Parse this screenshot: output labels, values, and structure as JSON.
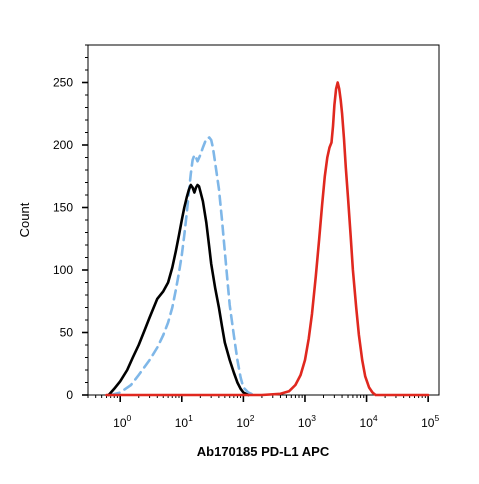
{
  "chart_data": {
    "type": "line",
    "title": "",
    "xlabel": "Ab170185 PD-L1 APC",
    "ylabel": "Count",
    "x_scale": "log",
    "xlim": [
      0.3,
      150000
    ],
    "ylim": [
      0,
      280
    ],
    "grid": false,
    "legend": "none",
    "x_ticks": [
      {
        "base": "10",
        "exp": "0",
        "value": 1
      },
      {
        "base": "10",
        "exp": "1",
        "value": 10
      },
      {
        "base": "10",
        "exp": "2",
        "value": 100
      },
      {
        "base": "10",
        "exp": "3",
        "value": 1000
      },
      {
        "base": "10",
        "exp": "4",
        "value": 10000
      },
      {
        "base": "10",
        "exp": "5",
        "value": 100000
      }
    ],
    "y_ticks": [
      0,
      50,
      100,
      150,
      200,
      250
    ],
    "series": [
      {
        "color": "#7fb7e8",
        "style": "dashed",
        "points": [
          [
            0.7,
            0
          ],
          [
            1,
            2
          ],
          [
            1.5,
            8
          ],
          [
            2,
            16
          ],
          [
            3,
            28
          ],
          [
            4,
            38
          ],
          [
            5,
            48
          ],
          [
            6,
            58
          ],
          [
            7,
            70
          ],
          [
            8,
            84
          ],
          [
            9,
            98
          ],
          [
            10,
            112
          ],
          [
            11,
            128
          ],
          [
            12,
            145
          ],
          [
            13,
            162
          ],
          [
            14,
            177
          ],
          [
            15,
            188
          ],
          [
            16,
            192
          ],
          [
            17,
            190
          ],
          [
            18,
            187
          ],
          [
            20,
            192
          ],
          [
            22,
            198
          ],
          [
            25,
            205
          ],
          [
            28,
            206
          ],
          [
            30,
            204
          ],
          [
            32,
            198
          ],
          [
            35,
            185
          ],
          [
            40,
            165
          ],
          [
            45,
            140
          ],
          [
            50,
            115
          ],
          [
            55,
            92
          ],
          [
            60,
            72
          ],
          [
            70,
            48
          ],
          [
            80,
            28
          ],
          [
            90,
            14
          ],
          [
            100,
            6
          ],
          [
            120,
            2
          ],
          [
            150,
            0
          ]
        ]
      },
      {
        "color": "#000000",
        "style": "solid",
        "points": [
          [
            0.65,
            0
          ],
          [
            0.8,
            5
          ],
          [
            1,
            11
          ],
          [
            1.3,
            20
          ],
          [
            1.6,
            30
          ],
          [
            2,
            40
          ],
          [
            2.5,
            52
          ],
          [
            3,
            62
          ],
          [
            3.5,
            70
          ],
          [
            4,
            77
          ],
          [
            5,
            83
          ],
          [
            6,
            90
          ],
          [
            7,
            102
          ],
          [
            8,
            115
          ],
          [
            9,
            128
          ],
          [
            10,
            140
          ],
          [
            11,
            150
          ],
          [
            12,
            158
          ],
          [
            13,
            164
          ],
          [
            14,
            168
          ],
          [
            15,
            166
          ],
          [
            16,
            162
          ],
          [
            17,
            166
          ],
          [
            18,
            168
          ],
          [
            19,
            167
          ],
          [
            20,
            163
          ],
          [
            22,
            155
          ],
          [
            25,
            138
          ],
          [
            28,
            118
          ],
          [
            30,
            105
          ],
          [
            35,
            85
          ],
          [
            40,
            70
          ],
          [
            45,
            55
          ],
          [
            50,
            42
          ],
          [
            60,
            28
          ],
          [
            70,
            18
          ],
          [
            80,
            10
          ],
          [
            90,
            5
          ],
          [
            100,
            2
          ],
          [
            120,
            0
          ]
        ]
      },
      {
        "color": "#e0281f",
        "style": "solid",
        "points": [
          [
            0.6,
            0
          ],
          [
            100,
            0
          ],
          [
            200,
            0
          ],
          [
            400,
            1
          ],
          [
            550,
            3
          ],
          [
            700,
            8
          ],
          [
            850,
            16
          ],
          [
            1000,
            28
          ],
          [
            1150,
            45
          ],
          [
            1300,
            65
          ],
          [
            1500,
            95
          ],
          [
            1700,
            125
          ],
          [
            1900,
            152
          ],
          [
            2100,
            175
          ],
          [
            2300,
            190
          ],
          [
            2500,
            198
          ],
          [
            2700,
            202
          ],
          [
            2850,
            215
          ],
          [
            3000,
            232
          ],
          [
            3200,
            245
          ],
          [
            3400,
            250
          ],
          [
            3600,
            245
          ],
          [
            3800,
            236
          ],
          [
            4000,
            225
          ],
          [
            4300,
            205
          ],
          [
            4600,
            182
          ],
          [
            5000,
            158
          ],
          [
            5500,
            128
          ],
          [
            6000,
            100
          ],
          [
            6800,
            70
          ],
          [
            7500,
            48
          ],
          [
            8500,
            28
          ],
          [
            9500,
            15
          ],
          [
            11000,
            6
          ],
          [
            12500,
            2
          ],
          [
            14000,
            0
          ],
          [
            100000,
            0
          ]
        ]
      }
    ]
  }
}
